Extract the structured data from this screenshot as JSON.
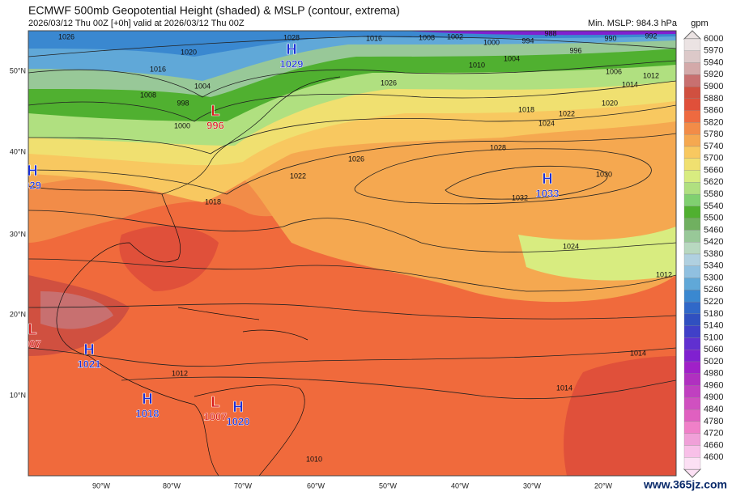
{
  "header": {
    "title": "ECMWF 500mb Geopotential Height (shaded) & MSLP (contour, extrema)",
    "subtitle": "2026/03/12 Thu 00Z [+0h] valid at 2026/03/12 Thu 00Z",
    "min_mslp": "Min. MSLP: 984.3 hPa"
  },
  "colorbar": {
    "unit": "gpm",
    "levels": [
      {
        "label": "6000",
        "color": "#ebe3e3"
      },
      {
        "label": "5970",
        "color": "#dcc9c9"
      },
      {
        "label": "5940",
        "color": "#d3a9a9"
      },
      {
        "label": "5920",
        "color": "#c87070"
      },
      {
        "label": "5900",
        "color": "#d05040"
      },
      {
        "label": "5880",
        "color": "#e0503a"
      },
      {
        "label": "5860",
        "color": "#ee6a40"
      },
      {
        "label": "5820",
        "color": "#f28c48"
      },
      {
        "label": "5780",
        "color": "#f5a850"
      },
      {
        "label": "5740",
        "color": "#f8c860"
      },
      {
        "label": "5700",
        "color": "#f0e070"
      },
      {
        "label": "5660",
        "color": "#d8ec80"
      },
      {
        "label": "5620",
        "color": "#b0e080"
      },
      {
        "label": "5580",
        "color": "#80d070"
      },
      {
        "label": "5540",
        "color": "#50b030"
      },
      {
        "label": "5500",
        "color": "#70b060"
      },
      {
        "label": "5460",
        "color": "#98c898"
      },
      {
        "label": "5420",
        "color": "#b8d8c0"
      },
      {
        "label": "5380",
        "color": "#b0d0e0"
      },
      {
        "label": "5340",
        "color": "#90c0e0"
      },
      {
        "label": "5300",
        "color": "#60a8d8"
      },
      {
        "label": "5260",
        "color": "#3a88d0"
      },
      {
        "label": "5220",
        "color": "#3068c8"
      },
      {
        "label": "5180",
        "color": "#3050c0"
      },
      {
        "label": "5140",
        "color": "#4040c8"
      },
      {
        "label": "5100",
        "color": "#6030d0"
      },
      {
        "label": "5060",
        "color": "#8020d0"
      },
      {
        "label": "5020",
        "color": "#a020c8"
      },
      {
        "label": "4980",
        "color": "#b030c0"
      },
      {
        "label": "4960",
        "color": "#c040c0"
      },
      {
        "label": "4900",
        "color": "#d050c0"
      },
      {
        "label": "4840",
        "color": "#e060c0"
      },
      {
        "label": "4780",
        "color": "#f080c8"
      },
      {
        "label": "4720",
        "color": "#f0a0d8"
      },
      {
        "label": "4660",
        "color": "#f8c0e8"
      },
      {
        "label": "4600",
        "color": "#fce0f4"
      }
    ]
  },
  "latitudes": [
    "50°N",
    "40°N",
    "30°N",
    "20°N",
    "10°N"
  ],
  "longitudes": [
    "90°W",
    "80°W",
    "70°W",
    "60°W",
    "50°W",
    "40°W",
    "30°W",
    "20°W"
  ],
  "extrema": [
    {
      "symbol": "H",
      "pressure": "1029",
      "color": "#1a2fd8"
    },
    {
      "symbol": "L",
      "pressure": "996",
      "color": "#d81a1a"
    },
    {
      "symbol": "H",
      "pressure": "1033",
      "color": "#1a2fd8"
    },
    {
      "symbol": "H",
      "pressure": "029",
      "color": "#1a2fd8"
    },
    {
      "symbol": "L",
      "pressure": "007",
      "color": "#d81a1a"
    },
    {
      "symbol": "H",
      "pressure": "1021",
      "color": "#1a2fd8"
    },
    {
      "symbol": "H",
      "pressure": "1018",
      "color": "#1a2fd8"
    },
    {
      "symbol": "L",
      "pressure": "1007",
      "color": "#d81a1a"
    },
    {
      "symbol": "H",
      "pressure": "1020",
      "color": "#1a2fd8"
    }
  ],
  "contour_labels": [
    "1026",
    "1020",
    "1016",
    "1008",
    "1004",
    "1000",
    "998",
    "1028",
    "1016",
    "1008",
    "1002",
    "1000",
    "994",
    "988",
    "990",
    "992",
    "996",
    "1004",
    "1006",
    "1010",
    "1014",
    "1012",
    "1026",
    "1018",
    "1022",
    "1024",
    "1020",
    "1028",
    "1026",
    "1032",
    "1030",
    "1022",
    "1018",
    "1024",
    "1014",
    "1012",
    "1014",
    "1012",
    "1010"
  ],
  "watermark": "www.365jz.com"
}
